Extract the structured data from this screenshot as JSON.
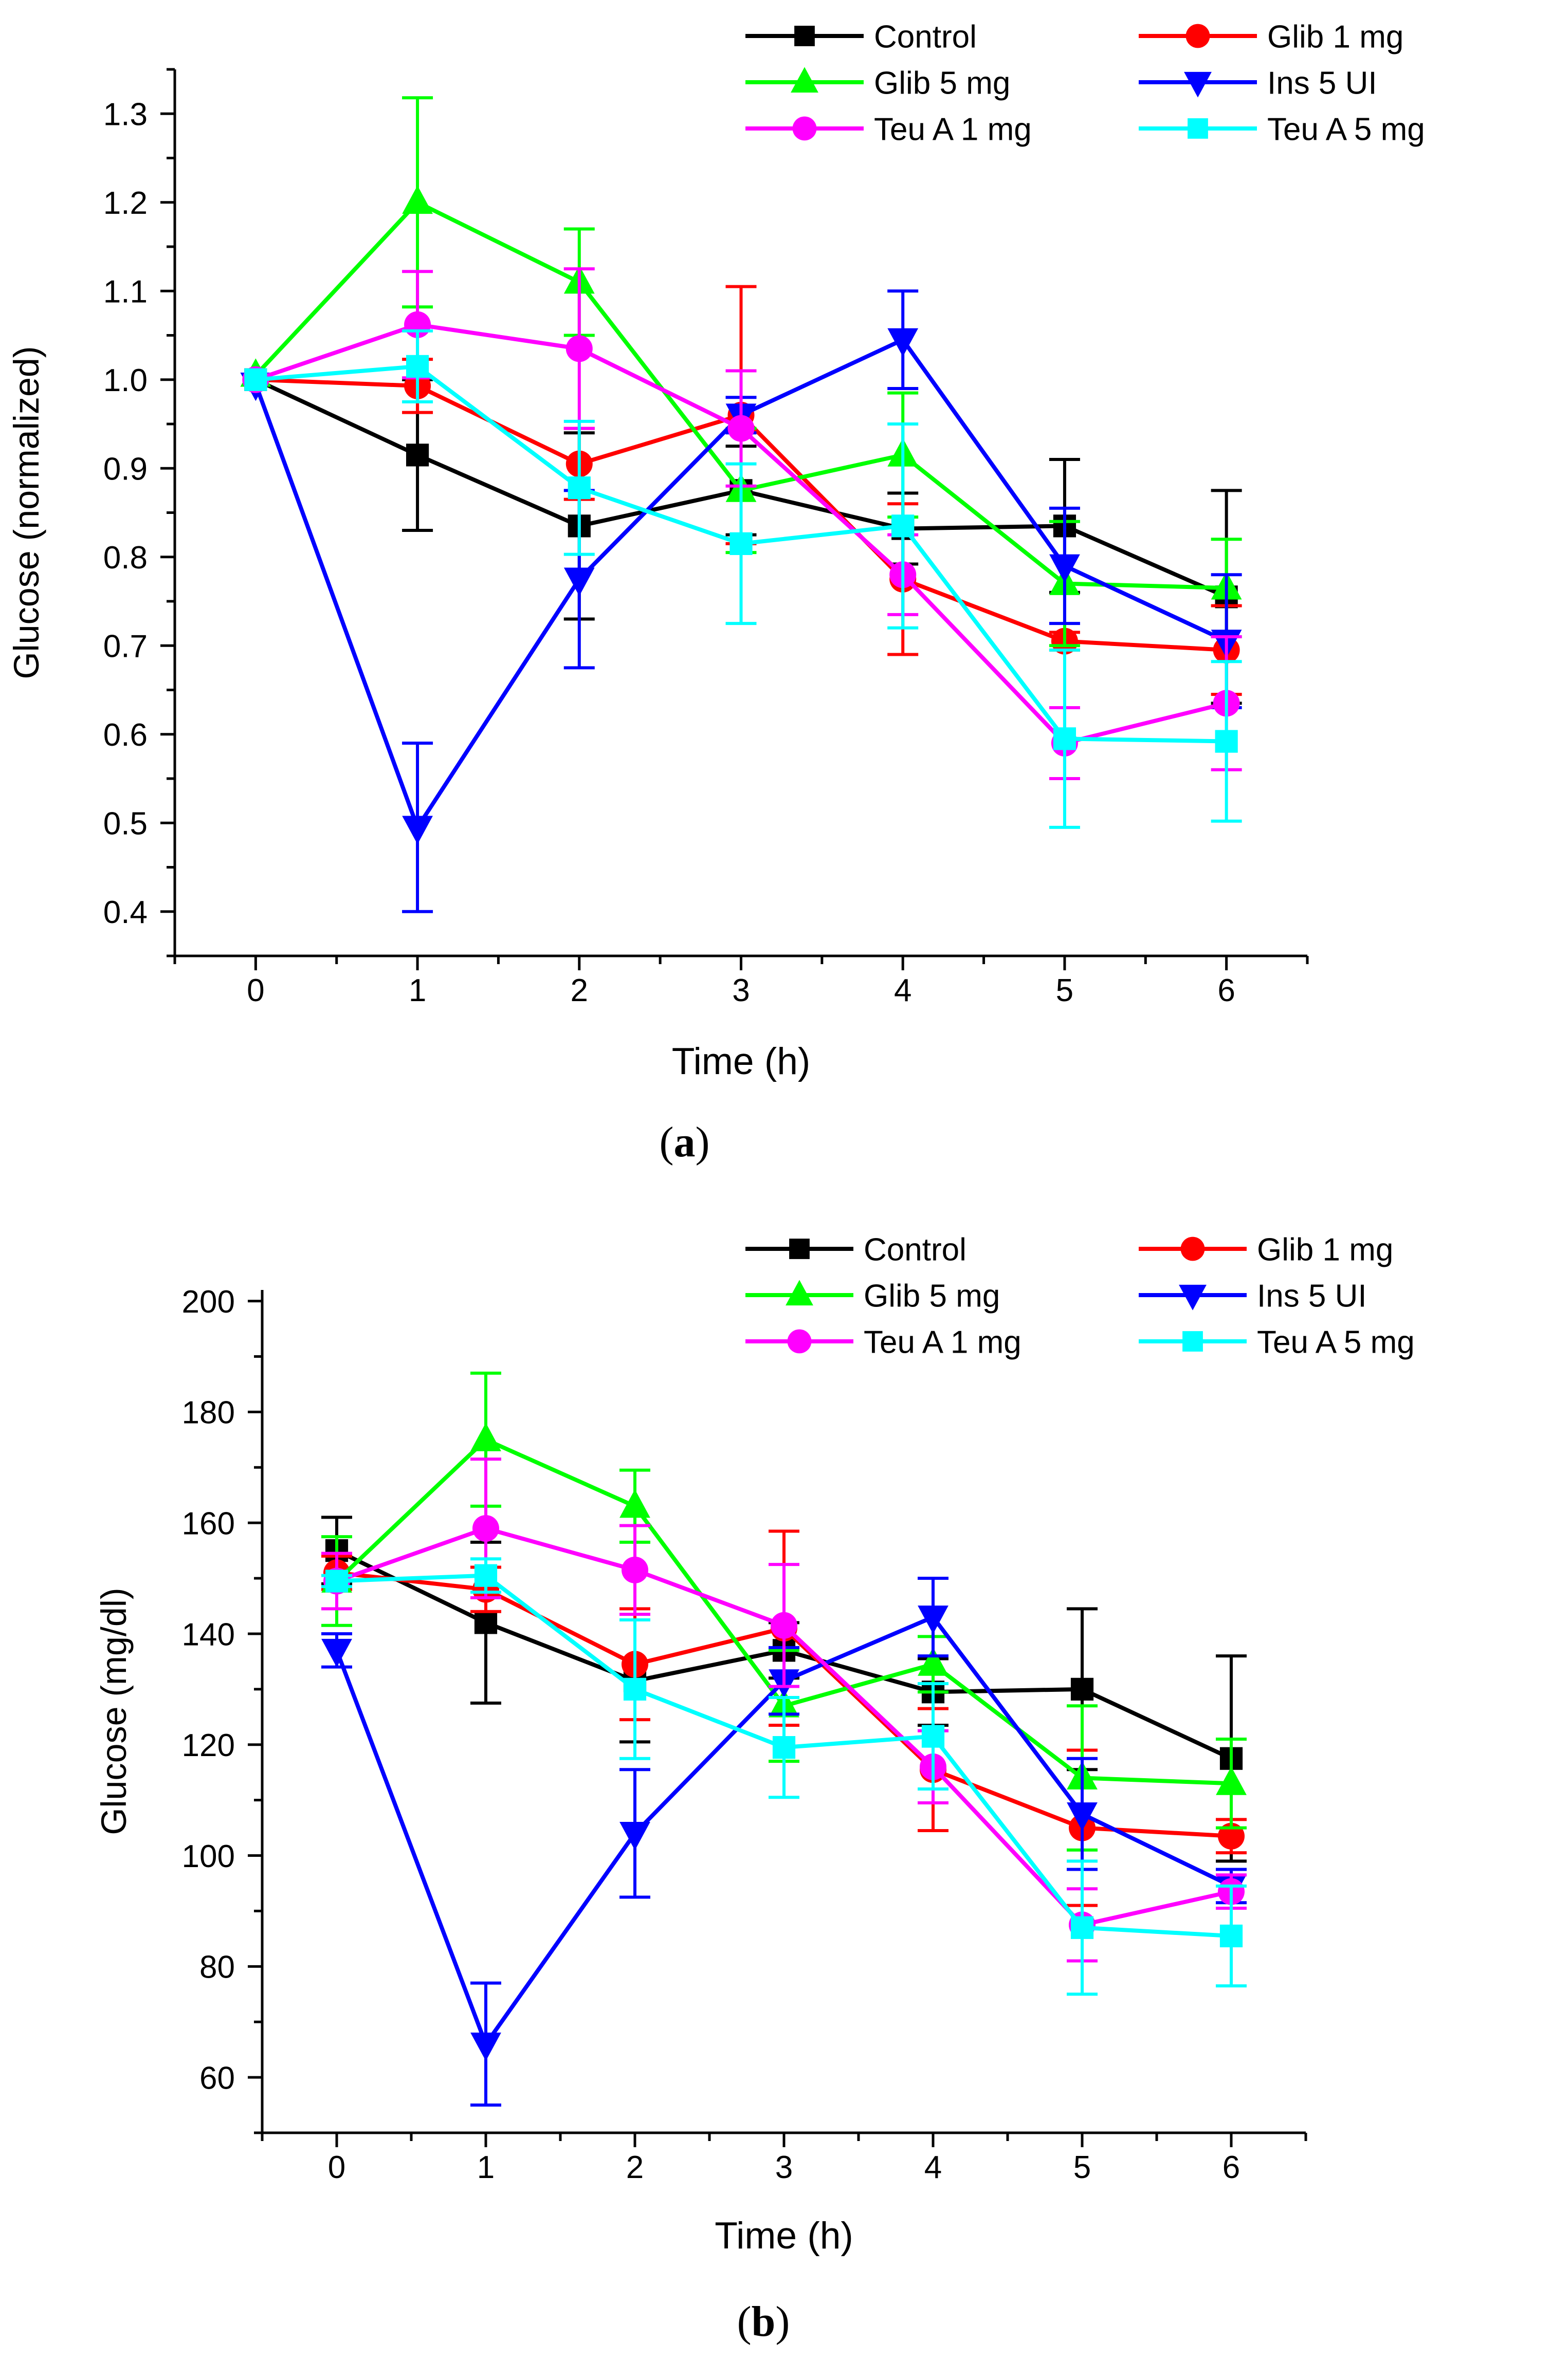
{
  "chart_data": [
    {
      "type": "line",
      "panel_label": "a",
      "xlabel": "Time (h)",
      "ylabel": "Glucose (normalized)",
      "x": [
        0,
        1,
        2,
        3,
        4,
        5,
        6
      ],
      "xlim": [
        -0.5,
        6.5
      ],
      "ylim": [
        0.35,
        1.35
      ],
      "x_ticks": [
        0,
        1,
        2,
        3,
        4,
        5,
        6
      ],
      "y_ticks": [
        0.4,
        0.5,
        0.6,
        0.7,
        0.8,
        0.9,
        1.0,
        1.1,
        1.2,
        1.3
      ],
      "y_tick_labels": [
        "0.4",
        "0.5",
        "0.6",
        "0.7",
        "0.8",
        "0.9",
        "1.0",
        "1.1",
        "1.2",
        "1.3"
      ],
      "legend_position": "top",
      "series": [
        {
          "name": "Control",
          "color": "#000000",
          "marker": "square",
          "values": [
            1.0,
            0.915,
            0.835,
            0.875,
            0.832,
            0.835,
            0.755
          ],
          "errors": [
            0,
            0.085,
            0.105,
            0.05,
            0.04,
            0.075,
            0.12
          ]
        },
        {
          "name": "Glib 1 mg",
          "color": "#ff0000",
          "marker": "circle",
          "values": [
            1.0,
            0.993,
            0.905,
            0.96,
            0.775,
            0.705,
            0.695
          ],
          "errors": [
            0,
            0.03,
            0.04,
            0.145,
            0.085,
            0.01,
            0.05
          ]
        },
        {
          "name": "Glib 5 mg",
          "color": "#00ff00",
          "marker": "triangle-up",
          "values": [
            1.005,
            1.2,
            1.11,
            0.875,
            0.915,
            0.77,
            0.765
          ],
          "errors": [
            0,
            0.118,
            0.06,
            0.07,
            0.07,
            0.07,
            0.055
          ]
        },
        {
          "name": "Ins 5 UI",
          "color": "#0000ff",
          "marker": "triangle-down",
          "values": [
            0.995,
            0.495,
            0.775,
            0.96,
            1.045,
            0.79,
            0.705
          ],
          "errors": [
            0,
            0.095,
            0.1,
            0.02,
            0.055,
            0.065,
            0.075
          ]
        },
        {
          "name": "Teu A 1 mg",
          "color": "#ff00ff",
          "marker": "circle",
          "values": [
            1.0,
            1.062,
            1.035,
            0.945,
            0.78,
            0.59,
            0.635
          ],
          "errors": [
            0,
            0.06,
            0.09,
            0.065,
            0.045,
            0.04,
            0.075
          ]
        },
        {
          "name": "Teu A 5 mg",
          "color": "#00ffff",
          "marker": "square",
          "values": [
            1.0,
            1.015,
            0.878,
            0.815,
            0.835,
            0.595,
            0.592
          ],
          "errors": [
            0,
            0.04,
            0.075,
            0.09,
            0.115,
            0.1,
            0.09
          ]
        }
      ]
    },
    {
      "type": "line",
      "panel_label": "b",
      "xlabel": "Time (h)",
      "ylabel": "Glucose (mg/dl)",
      "x": [
        0,
        1,
        2,
        3,
        4,
        5,
        6
      ],
      "xlim": [
        -0.5,
        6.5
      ],
      "ylim": [
        50,
        202
      ],
      "x_ticks": [
        0,
        1,
        2,
        3,
        4,
        5,
        6
      ],
      "y_ticks": [
        60,
        80,
        100,
        120,
        140,
        160,
        180,
        200
      ],
      "y_tick_labels": [
        "60",
        "80",
        "100",
        "120",
        "140",
        "160",
        "180",
        "200"
      ],
      "legend_position": "top",
      "series": [
        {
          "name": "Control",
          "color": "#000000",
          "marker": "square",
          "values": [
            155,
            142,
            131.5,
            137,
            129.5,
            130,
            117.5
          ],
          "errors": [
            6,
            14.5,
            11,
            5,
            6,
            14.5,
            18.5
          ]
        },
        {
          "name": "Glib 1 mg",
          "color": "#ff0000",
          "marker": "circle",
          "values": [
            151,
            148,
            134.5,
            141,
            115.5,
            105,
            103.5
          ],
          "errors": [
            3,
            4,
            10,
            17.5,
            11,
            14,
            3
          ]
        },
        {
          "name": "Glib 5 mg",
          "color": "#00ff00",
          "marker": "triangle-up",
          "values": [
            149.5,
            175,
            163,
            127,
            134.5,
            114,
            113
          ],
          "errors": [
            8,
            12,
            6.5,
            10,
            5,
            13,
            8
          ]
        },
        {
          "name": "Ins 5 UI",
          "color": "#0000ff",
          "marker": "triangle-down",
          "values": [
            137,
            66,
            104,
            131.5,
            143,
            107.5,
            94.5
          ],
          "errors": [
            3,
            11,
            11.5,
            6,
            7,
            10,
            3
          ]
        },
        {
          "name": "Teu A 1 mg",
          "color": "#ff00ff",
          "marker": "circle",
          "values": [
            149.5,
            159,
            151.5,
            141.5,
            116,
            87.5,
            93.5
          ],
          "errors": [
            5,
            12.5,
            8,
            11,
            6.5,
            6.5,
            3
          ]
        },
        {
          "name": "Teu A 5 mg",
          "color": "#00ffff",
          "marker": "square",
          "values": [
            149.5,
            150.5,
            130,
            119.5,
            121.5,
            87,
            85.5
          ],
          "errors": [
            1,
            3,
            12.5,
            9,
            9.5,
            12,
            9
          ]
        }
      ]
    }
  ]
}
